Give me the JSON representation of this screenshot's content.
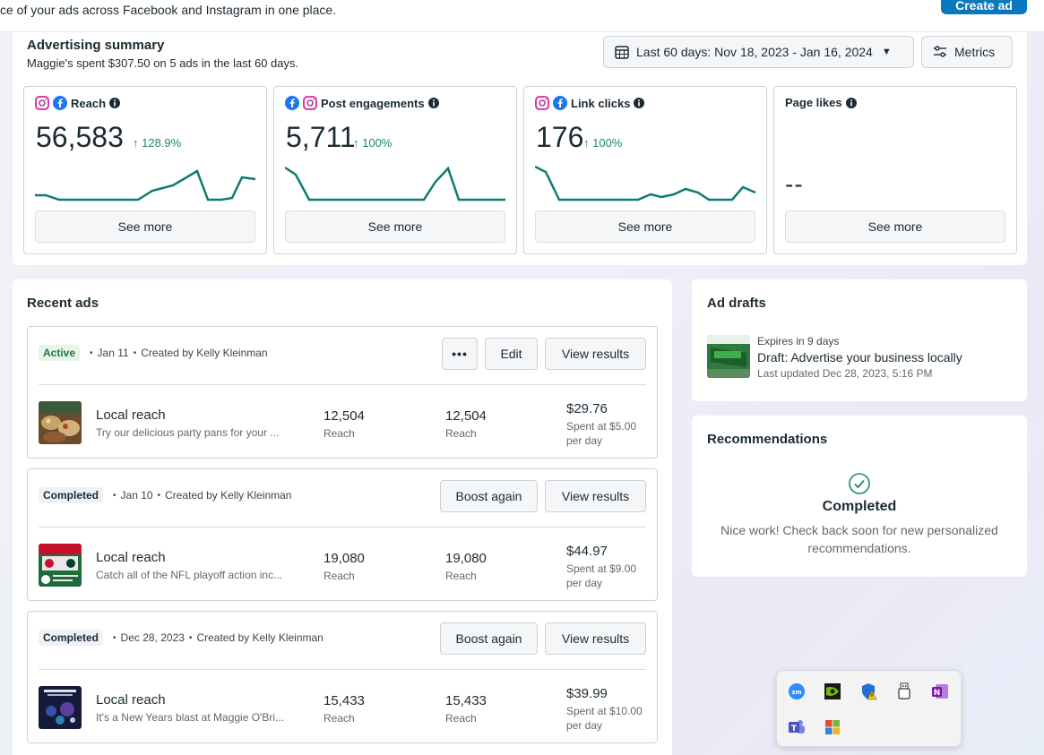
{
  "header": {
    "description": "ce of your ads across Facebook and Instagram in one place.",
    "create_button": "Create ad"
  },
  "summary": {
    "title": "Advertising summary",
    "subtitle": "Maggie's spent $307.50 on 5 ads in the last 60 days.",
    "date_range": "Last 60 days: Nov 18, 2023 - Jan 16, 2024",
    "metrics_label": "Metrics",
    "cards": [
      {
        "label": "Reach",
        "value": "56,583",
        "change": "↑ 128.9%",
        "see_more": "See more"
      },
      {
        "label": "Post engagements",
        "value": "5,711",
        "change": "↑ 100%",
        "see_more": "See more"
      },
      {
        "label": "Link clicks",
        "value": "176",
        "change": "↑ 100%",
        "see_more": "See more"
      },
      {
        "label": "Page likes",
        "value": "--",
        "change": "",
        "see_more": "See more"
      }
    ]
  },
  "recent_ads": {
    "title": "Recent ads",
    "ads": [
      {
        "status": "Active",
        "date": "Jan 11",
        "creator": "Created by Kelly Kleinman",
        "actions": [
          "•••",
          "Edit",
          "View results"
        ],
        "name": "Local reach",
        "description": "Try our delicious party pans for your ...",
        "reach_1": "12,504",
        "reach_1_label": "Reach",
        "reach_2": "12,504",
        "reach_2_label": "Reach",
        "spent": "$29.76",
        "spent_detail": "Spent at $5.00 per day"
      },
      {
        "status": "Completed",
        "date": "Jan 10",
        "creator": "Created by Kelly Kleinman",
        "actions": [
          "Boost again",
          "View results"
        ],
        "name": "Local reach",
        "description": "Catch all of the NFL playoff action inc...",
        "reach_1": "19,080",
        "reach_1_label": "Reach",
        "reach_2": "19,080",
        "reach_2_label": "Reach",
        "spent": "$44.97",
        "spent_detail": "Spent at $9.00 per day"
      },
      {
        "status": "Completed",
        "date": "Dec 28, 2023",
        "creator": "Created by Kelly Kleinman",
        "actions": [
          "Boost again",
          "View results"
        ],
        "name": "Local reach",
        "description": "It's a New Years blast at Maggie O'Bri...",
        "reach_1": "15,433",
        "reach_1_label": "Reach",
        "reach_2": "15,433",
        "reach_2_label": "Reach",
        "spent": "$39.99",
        "spent_detail": "Spent at $10.00 per day"
      }
    ]
  },
  "ad_drafts": {
    "title": "Ad drafts",
    "expires": "Expires in 9 days",
    "name": "Draft: Advertise your business locally",
    "updated": "Last updated Dec 28, 2023, 5:16 PM"
  },
  "recommendations": {
    "title": "Recommendations",
    "status": "Completed",
    "message": "Nice work! Check back soon for new personalized recommendations."
  },
  "tray": {
    "icons": [
      "zoom-icon",
      "nvidia-icon",
      "defender-icon",
      "usb-icon",
      "onenote-icon",
      "teams-icon",
      "windows-app-icon"
    ]
  },
  "colors": {
    "brand_blue": "#0a78be",
    "positive_green": "#1e8a5a",
    "sparkline": "#0e7c72"
  }
}
